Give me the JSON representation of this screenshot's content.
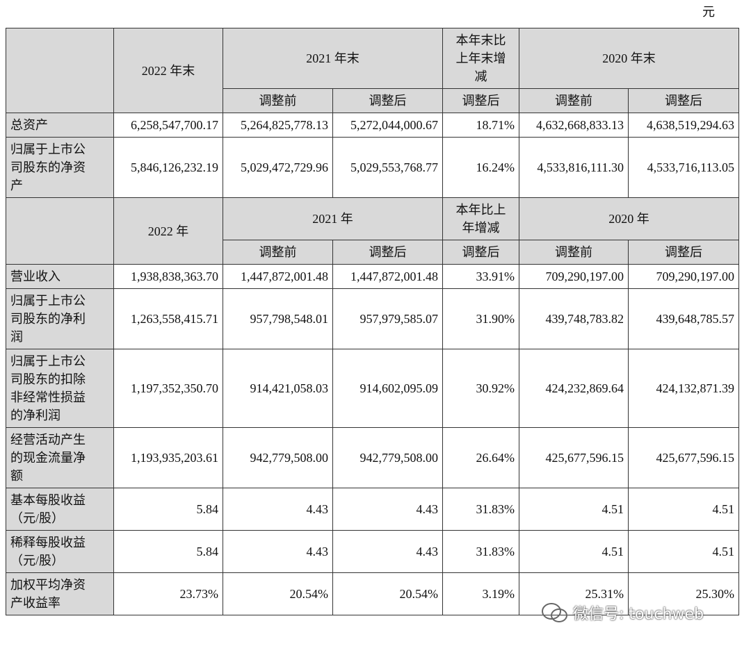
{
  "unit": "元",
  "sections": [
    {
      "header": [
        "2022 年末",
        "2021 年末",
        "本年末比上年末增减",
        "2020 年末"
      ],
      "subheader": [
        "调整前",
        "调整后",
        "调整后",
        "调整前",
        "调整后"
      ],
      "rows": [
        {
          "label": "总资产",
          "values": [
            "6,258,547,700.17",
            "5,264,825,778.13",
            "5,272,044,000.67",
            "18.71%",
            "4,632,668,833.13",
            "4,638,519,294.63"
          ]
        },
        {
          "label": "归属于上市公司股东的净资产",
          "values": [
            "5,846,126,232.19",
            "5,029,472,729.96",
            "5,029,553,768.77",
            "16.24%",
            "4,533,816,111.30",
            "4,533,716,113.05"
          ]
        }
      ]
    },
    {
      "header": [
        "2022 年",
        "2021 年",
        "本年比上年增减",
        "2020 年"
      ],
      "subheader": [
        "调整前",
        "调整后",
        "调整后",
        "调整前",
        "调整后"
      ],
      "rows": [
        {
          "label": "营业收入",
          "values": [
            "1,938,838,363.70",
            "1,447,872,001.48",
            "1,447,872,001.48",
            "33.91%",
            "709,290,197.00",
            "709,290,197.00"
          ]
        },
        {
          "label": "归属于上市公司股东的净利润",
          "values": [
            "1,263,558,415.71",
            "957,798,548.01",
            "957,979,585.07",
            "31.90%",
            "439,748,783.82",
            "439,648,785.57"
          ]
        },
        {
          "label": "归属于上市公司股东的扣除非经常性损益的净利润",
          "values": [
            "1,197,352,350.70",
            "914,421,058.03",
            "914,602,095.09",
            "30.92%",
            "424,232,869.64",
            "424,132,871.39"
          ]
        },
        {
          "label": "经营活动产生的现金流量净额",
          "values": [
            "1,193,935,203.61",
            "942,779,508.00",
            "942,779,508.00",
            "26.64%",
            "425,677,596.15",
            "425,677,596.15"
          ]
        },
        {
          "label": "基本每股收益（元/股）",
          "values": [
            "5.84",
            "4.43",
            "4.43",
            "31.83%",
            "4.51",
            "4.51"
          ]
        },
        {
          "label": "稀释每股收益（元/股）",
          "values": [
            "5.84",
            "4.43",
            "4.43",
            "31.83%",
            "4.51",
            "4.51"
          ]
        },
        {
          "label": "加权平均净资产收益率",
          "values": [
            "23.73%",
            "20.54%",
            "20.54%",
            "3.19%",
            "25.31%",
            "25.30%"
          ]
        }
      ]
    }
  ],
  "watermark": "微信号: touchweb"
}
